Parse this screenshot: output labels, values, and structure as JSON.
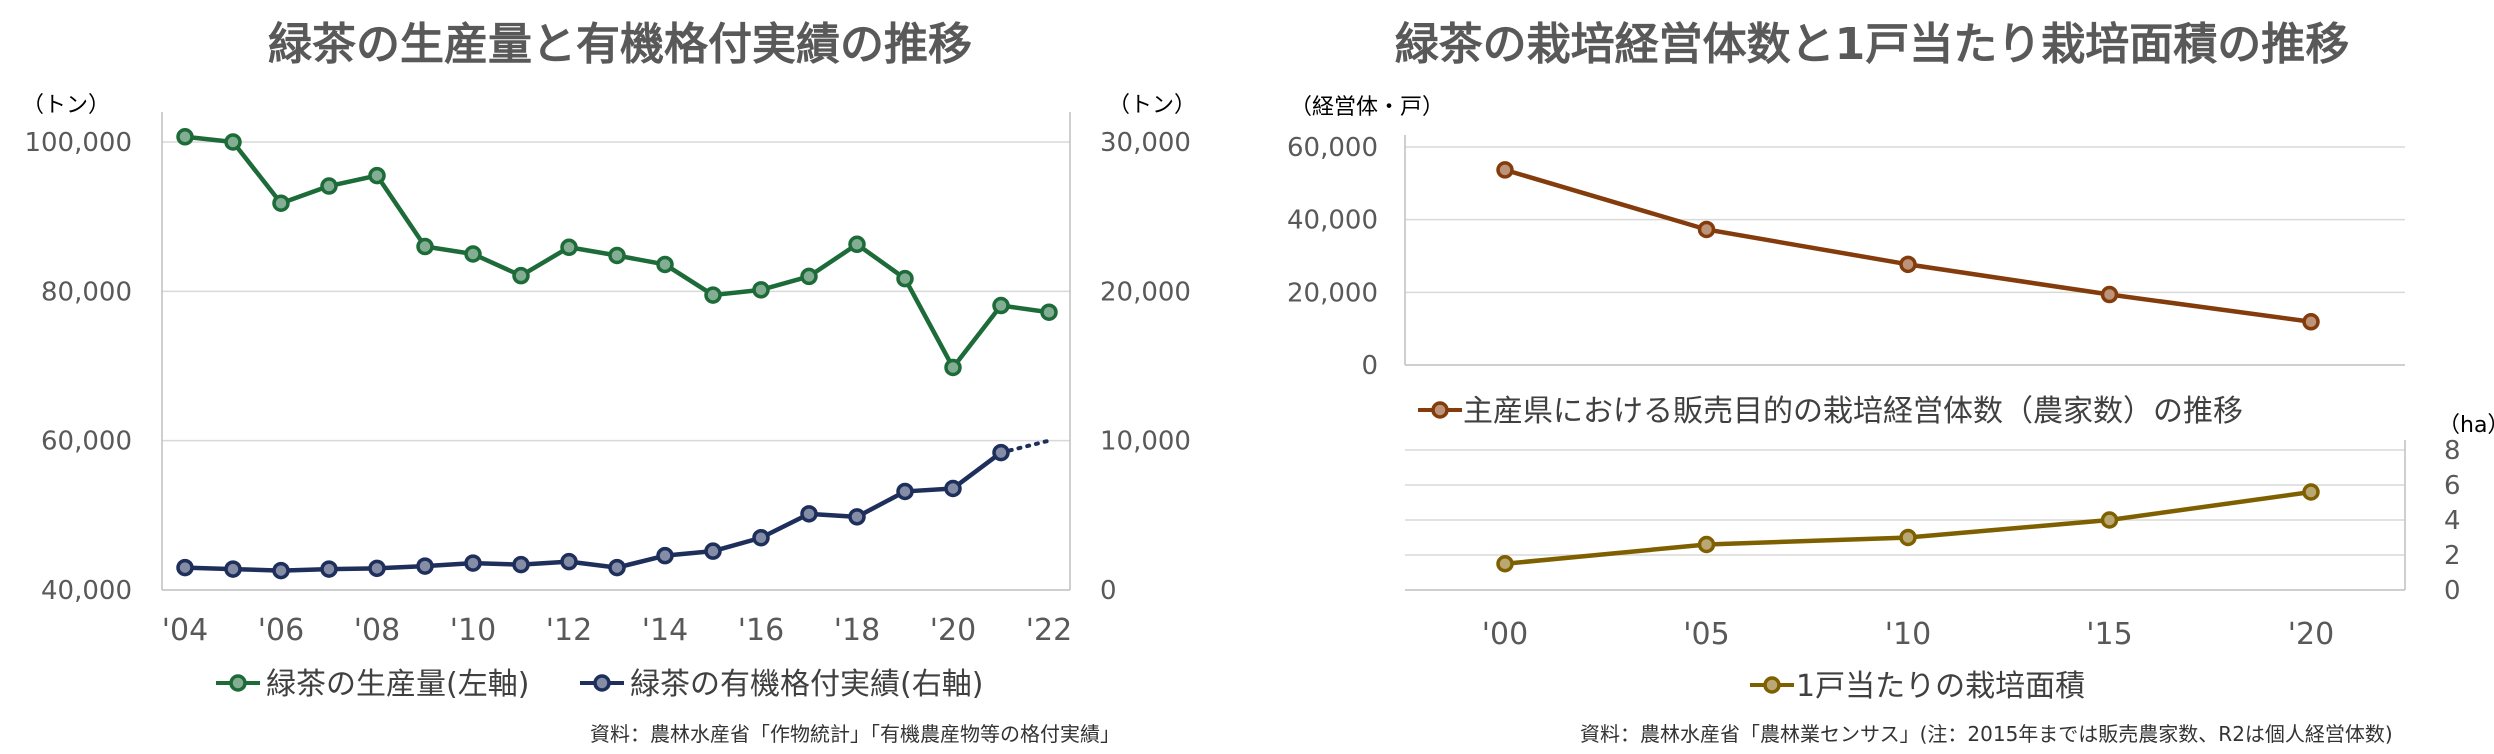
{
  "left": {
    "title": "緑茶の生産量と有機格付実績の推移",
    "source": "資料：農林水産省「作物統計」「有機農産物等の格付実績」",
    "yunit_left": "（トン）",
    "yunit_right": "（トン）",
    "colors": {
      "production": "#1e6b3a",
      "organic": "#1f2f5c",
      "grid": "#d9d9d9"
    }
  },
  "right": {
    "title": "緑茶の栽培経営体数と1戸当たり栽培面積の推移",
    "source": "資料：農林水産省「農林業センサス」(注：2015年までは販売農家数、R2は個人経営体数)",
    "top_unit": "（経営体・戸）",
    "bottom_unit": "（ha）",
    "colors": {
      "farms": "#843c0c",
      "area": "#7f6000",
      "grid": "#d9d9d9"
    }
  },
  "chart_data": [
    {
      "type": "line",
      "title": "緑茶の生産量と有機格付実績の推移",
      "x": [
        "'04",
        "'05",
        "'06",
        "'07",
        "'08",
        "'09",
        "'10",
        "'11",
        "'12",
        "'13",
        "'14",
        "'15",
        "'16",
        "'17",
        "'18",
        "'19",
        "'20",
        "'21",
        "'22"
      ],
      "xticks": [
        "'04",
        "'06",
        "'08",
        "'10",
        "'12",
        "'14",
        "'16",
        "'18",
        "'20",
        "'22"
      ],
      "ylim_left": [
        40000,
        105000
      ],
      "yticks_left": [
        "40,000",
        "60,000",
        "80,000",
        "100,000"
      ],
      "yticks_left_values": [
        40000,
        60000,
        80000,
        100000
      ],
      "ylim_right": [
        0,
        32500
      ],
      "yticks_right": [
        "0",
        "10,000",
        "20,000",
        "30,000"
      ],
      "yticks_right_values": [
        0,
        10000,
        20000,
        30000
      ],
      "grid": true,
      "legend_position": "bottom",
      "series": [
        {
          "name": "緑茶の生産量(左軸)",
          "axis": "left",
          "values": [
            100700,
            100000,
            91800,
            94100,
            95500,
            86000,
            85000,
            82100,
            85900,
            84800,
            83600,
            79500,
            80200,
            82000,
            86300,
            81700,
            69800,
            78100,
            77200
          ]
        },
        {
          "name": "緑茶の有機格付実績(右軸)",
          "axis": "right",
          "values": [
            1500,
            1400,
            1300,
            1400,
            1450,
            1600,
            1800,
            1700,
            1900,
            1500,
            2300,
            2600,
            3500,
            5100,
            4900,
            6600,
            6800,
            9200,
            null
          ],
          "projection": {
            "from": "'21",
            "to": "'22",
            "value": 10000,
            "style": "dotted"
          }
        }
      ]
    },
    {
      "type": "line",
      "title": "主産県における販売目的の栽培経営体数（農家数）の推移",
      "x": [
        "'00",
        "'05",
        "'10",
        "'15",
        "'20"
      ],
      "ylim": [
        0,
        65000
      ],
      "yticks": [
        "0",
        "20,000",
        "40,000",
        "60,000"
      ],
      "yticks_values": [
        0,
        20000,
        40000,
        60000
      ],
      "grid": true,
      "legend_position": "bottom",
      "series": [
        {
          "name": "主産県における販売目的の栽培経営体数（農家数）の推移",
          "values": [
            53700,
            37300,
            27700,
            19400,
            11900
          ]
        }
      ]
    },
    {
      "type": "line",
      "title": "1戸当たりの栽培面積",
      "x": [
        "'00",
        "'05",
        "'10",
        "'15",
        "'20"
      ],
      "xticks": [
        "'00",
        "'05",
        "'10",
        "'15",
        "'20"
      ],
      "ylim": [
        0,
        8
      ],
      "yticks": [
        "0",
        "2",
        "4",
        "6",
        "8"
      ],
      "yticks_values": [
        0,
        2,
        4,
        6,
        8
      ],
      "grid": true,
      "legend_position": "bottom",
      "series": [
        {
          "name": "1戸当たりの栽培面積",
          "values": [
            1.5,
            2.6,
            3.0,
            4.0,
            5.6
          ]
        }
      ]
    }
  ]
}
